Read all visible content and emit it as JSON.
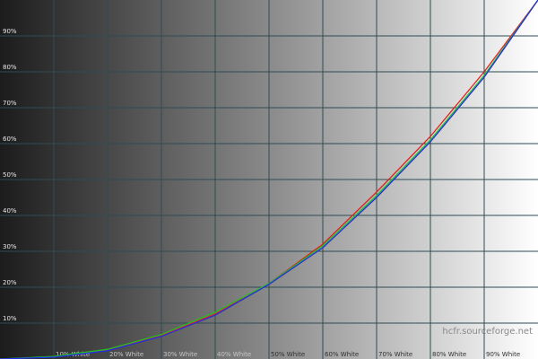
{
  "chart_data": {
    "type": "line",
    "x": [
      0,
      10,
      20,
      30,
      40,
      50,
      60,
      70,
      80,
      90,
      100
    ],
    "series": [
      {
        "color": "#e02020",
        "values": [
          0,
          0.6,
          2.5,
          6.5,
          12.5,
          21,
          32,
          46.5,
          62,
          80,
          100
        ]
      },
      {
        "color": "#20c020",
        "values": [
          0,
          0.7,
          2.7,
          6.8,
          13,
          21,
          31.5,
          45.5,
          61,
          79,
          100
        ]
      },
      {
        "color": "#2030e0",
        "values": [
          0,
          0.5,
          2.3,
          6.3,
          12.2,
          20.8,
          31,
          45,
          60.5,
          78.5,
          100
        ]
      }
    ],
    "xlim": [
      0,
      100
    ],
    "ylim": [
      0,
      100
    ],
    "xticks": [
      {
        "value": 10,
        "label": "10% White"
      },
      {
        "value": 20,
        "label": "20% White"
      },
      {
        "value": 30,
        "label": "30% White"
      },
      {
        "value": 40,
        "label": "40% White"
      },
      {
        "value": 50,
        "label": "50% White"
      },
      {
        "value": 60,
        "label": "60% White"
      },
      {
        "value": 70,
        "label": "70% White"
      },
      {
        "value": 80,
        "label": "80% White"
      },
      {
        "value": 90,
        "label": "90% White"
      }
    ],
    "yticks": [
      {
        "value": 10,
        "label": "10%"
      },
      {
        "value": 20,
        "label": "20%"
      },
      {
        "value": 30,
        "label": "30%"
      },
      {
        "value": 40,
        "label": "40%"
      },
      {
        "value": 50,
        "label": "50%"
      },
      {
        "value": 60,
        "label": "60%"
      },
      {
        "value": 70,
        "label": "70%"
      },
      {
        "value": 80,
        "label": "80%"
      },
      {
        "value": 90,
        "label": "90%"
      }
    ],
    "grid": true,
    "watermark": "hcfr.sourceforge.net"
  }
}
